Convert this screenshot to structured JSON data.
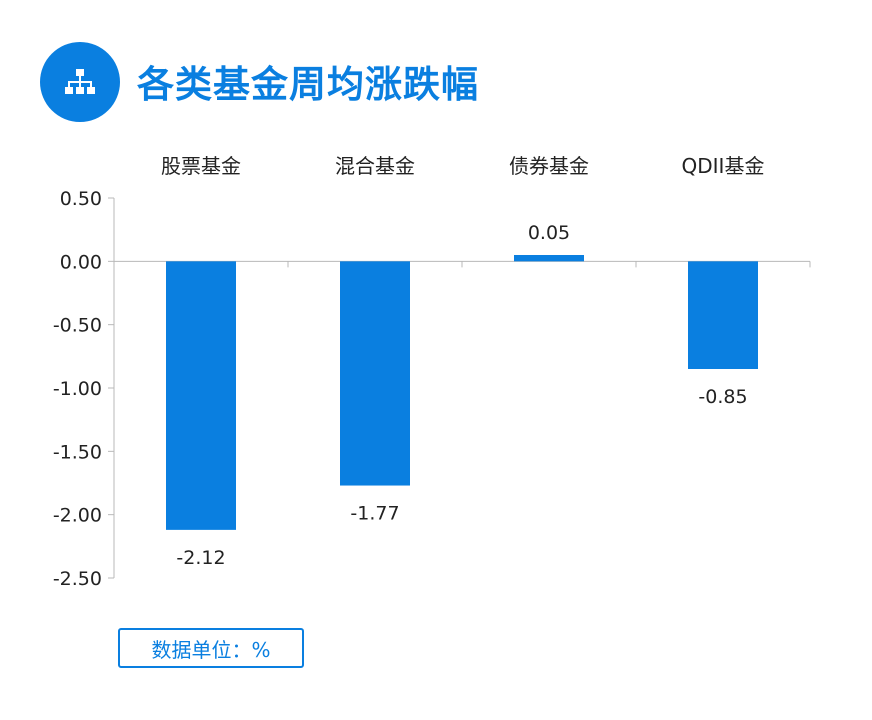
{
  "header": {
    "title": "各类基金周均涨跌幅",
    "icon": "hierarchy-icon",
    "accent_color": "#0a7fe0"
  },
  "chart_data": {
    "type": "bar",
    "categories": [
      "股票基金",
      "混合基金",
      "债券基金",
      "QDII基金"
    ],
    "values": [
      -2.12,
      -1.77,
      0.05,
      -0.85
    ],
    "data_labels": [
      "-2.12",
      "-1.77",
      "0.05",
      "-0.85"
    ],
    "yticks": [
      "0.50",
      "0.00",
      "-0.50",
      "-1.00",
      "-1.50",
      "-2.00",
      "-2.50"
    ],
    "ylim": [
      -2.5,
      0.5
    ],
    "category_axis_position": "top",
    "grid": false,
    "bar_color": "#0a7fe0"
  },
  "footer": {
    "unit_label": "数据单位：%"
  }
}
